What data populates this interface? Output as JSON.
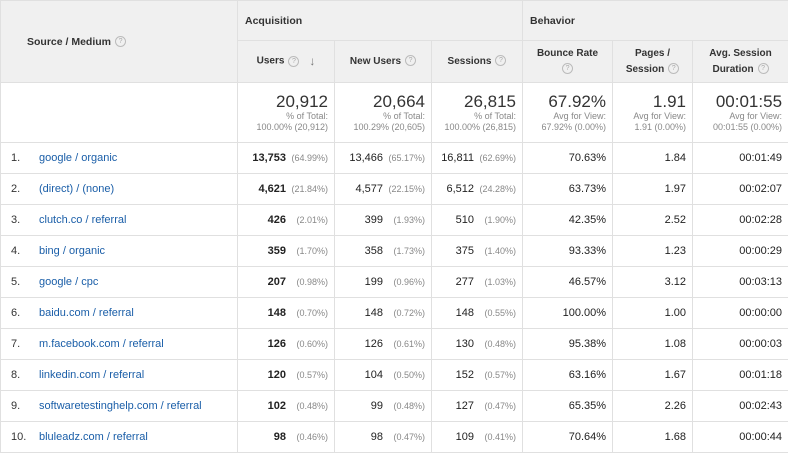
{
  "headers": {
    "source_medium": "Source / Medium",
    "acquisition": "Acquisition",
    "behavior": "Behavior",
    "users": "Users",
    "new_users": "New Users",
    "sessions": "Sessions",
    "bounce_rate": "Bounce Rate",
    "pages_session_1": "Pages /",
    "pages_session_2": "Session",
    "avg_dur_1": "Avg. Session",
    "avg_dur_2": "Duration",
    "help_glyph": "?",
    "sort_glyph": "↓"
  },
  "totals": {
    "users": "20,912",
    "users_sub1": "% of Total:",
    "users_sub2": "100.00% (20,912)",
    "new_users": "20,664",
    "new_users_sub1": "% of Total:",
    "new_users_sub2": "100.29% (20,605)",
    "sessions": "26,815",
    "sessions_sub1": "% of Total:",
    "sessions_sub2": "100.00% (26,815)",
    "bounce": "67.92%",
    "bounce_sub1": "Avg for View:",
    "bounce_sub2": "67.92% (0.00%)",
    "pages": "1.91",
    "pages_sub1": "Avg for View:",
    "pages_sub2": "1.91 (0.00%)",
    "duration": "00:01:55",
    "duration_sub1": "Avg for View:",
    "duration_sub2": "00:01:55 (0.00%)"
  },
  "rows": [
    {
      "idx": "1.",
      "source": "google / organic",
      "users": "13,753",
      "users_pct": "(64.99%)",
      "new_users": "13,466",
      "new_users_pct": "(65.17%)",
      "sessions": "16,811",
      "sessions_pct": "(62.69%)",
      "bounce": "70.63%",
      "pages": "1.84",
      "duration": "00:01:49"
    },
    {
      "idx": "2.",
      "source": "(direct) / (none)",
      "users": "4,621",
      "users_pct": "(21.84%)",
      "new_users": "4,577",
      "new_users_pct": "(22.15%)",
      "sessions": "6,512",
      "sessions_pct": "(24.28%)",
      "bounce": "63.73%",
      "pages": "1.97",
      "duration": "00:02:07"
    },
    {
      "idx": "3.",
      "source": "clutch.co / referral",
      "users": "426",
      "users_pct": "(2.01%)",
      "new_users": "399",
      "new_users_pct": "(1.93%)",
      "sessions": "510",
      "sessions_pct": "(1.90%)",
      "bounce": "42.35%",
      "pages": "2.52",
      "duration": "00:02:28"
    },
    {
      "idx": "4.",
      "source": "bing / organic",
      "users": "359",
      "users_pct": "(1.70%)",
      "new_users": "358",
      "new_users_pct": "(1.73%)",
      "sessions": "375",
      "sessions_pct": "(1.40%)",
      "bounce": "93.33%",
      "pages": "1.23",
      "duration": "00:00:29"
    },
    {
      "idx": "5.",
      "source": "google / cpc",
      "users": "207",
      "users_pct": "(0.98%)",
      "new_users": "199",
      "new_users_pct": "(0.96%)",
      "sessions": "277",
      "sessions_pct": "(1.03%)",
      "bounce": "46.57%",
      "pages": "3.12",
      "duration": "00:03:13"
    },
    {
      "idx": "6.",
      "source": "baidu.com / referral",
      "users": "148",
      "users_pct": "(0.70%)",
      "new_users": "148",
      "new_users_pct": "(0.72%)",
      "sessions": "148",
      "sessions_pct": "(0.55%)",
      "bounce": "100.00%",
      "pages": "1.00",
      "duration": "00:00:00"
    },
    {
      "idx": "7.",
      "source": "m.facebook.com / referral",
      "users": "126",
      "users_pct": "(0.60%)",
      "new_users": "126",
      "new_users_pct": "(0.61%)",
      "sessions": "130",
      "sessions_pct": "(0.48%)",
      "bounce": "95.38%",
      "pages": "1.08",
      "duration": "00:00:03"
    },
    {
      "idx": "8.",
      "source": "linkedin.com / referral",
      "users": "120",
      "users_pct": "(0.57%)",
      "new_users": "104",
      "new_users_pct": "(0.50%)",
      "sessions": "152",
      "sessions_pct": "(0.57%)",
      "bounce": "63.16%",
      "pages": "1.67",
      "duration": "00:01:18"
    },
    {
      "idx": "9.",
      "source": "softwaretestinghelp.com / referral",
      "users": "102",
      "users_pct": "(0.48%)",
      "new_users": "99",
      "new_users_pct": "(0.48%)",
      "sessions": "127",
      "sessions_pct": "(0.47%)",
      "bounce": "65.35%",
      "pages": "2.26",
      "duration": "00:02:43"
    },
    {
      "idx": "10.",
      "source": "bluleadz.com / referral",
      "users": "98",
      "users_pct": "(0.46%)",
      "new_users": "98",
      "new_users_pct": "(0.47%)",
      "sessions": "109",
      "sessions_pct": "(0.41%)",
      "bounce": "70.64%",
      "pages": "1.68",
      "duration": "00:00:44"
    }
  ]
}
